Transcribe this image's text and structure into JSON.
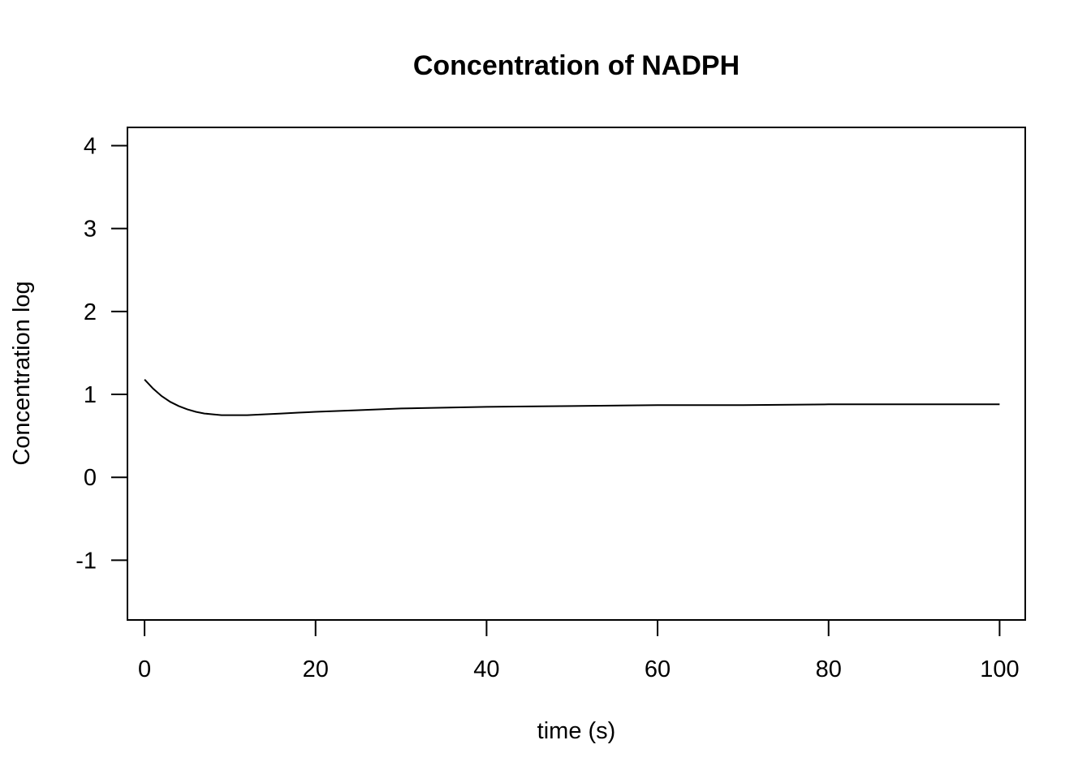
{
  "chart_data": {
    "type": "line",
    "title": "Concentration of NADPH",
    "xlabel": "time (s)",
    "ylabel": "Concentration log",
    "xlim": [
      -2,
      103
    ],
    "ylim": [
      -1.72,
      4.22
    ],
    "x_ticks": [
      "0",
      "20",
      "40",
      "60",
      "80",
      "100"
    ],
    "y_ticks": [
      "-1",
      "0",
      "1",
      "2",
      "3",
      "4"
    ],
    "grid": false,
    "legend": "none",
    "line_color": "#000000",
    "series": [
      {
        "x": [
          0,
          1,
          2,
          3,
          4,
          5,
          6,
          7,
          8,
          9,
          10,
          12,
          14,
          16,
          18,
          20,
          25,
          30,
          35,
          40,
          50,
          60,
          70,
          80,
          90,
          100
        ],
        "y": [
          1.18,
          1.07,
          0.98,
          0.91,
          0.86,
          0.82,
          0.79,
          0.77,
          0.76,
          0.75,
          0.75,
          0.75,
          0.76,
          0.77,
          0.78,
          0.79,
          0.81,
          0.83,
          0.84,
          0.85,
          0.86,
          0.87,
          0.87,
          0.88,
          0.88,
          0.88
        ]
      }
    ]
  }
}
